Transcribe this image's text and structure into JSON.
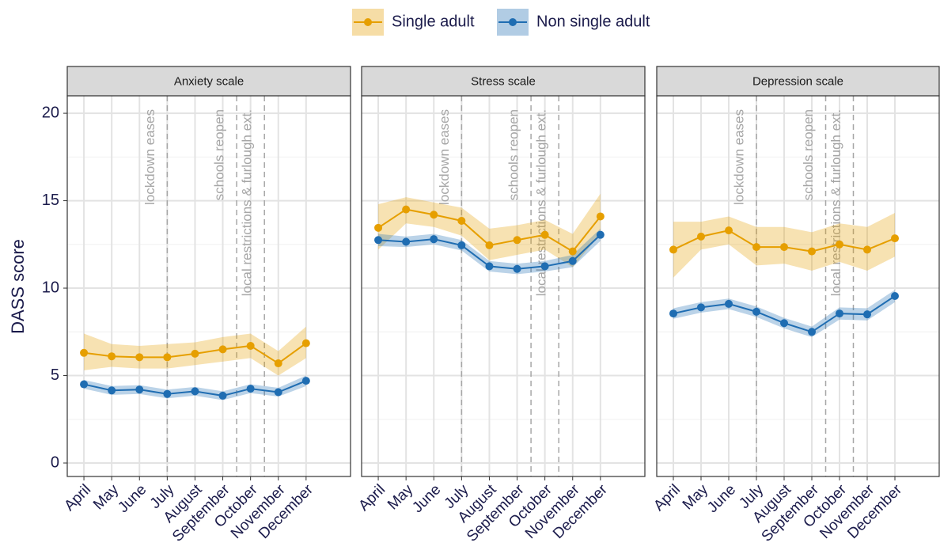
{
  "chart_data": [
    {
      "type": "line",
      "title": "Anxiety scale",
      "ylabel": "DASS score",
      "categories": [
        "April",
        "May",
        "June",
        "July",
        "August",
        "September",
        "October",
        "November",
        "December"
      ],
      "series": [
        {
          "name": "Single adult",
          "color": "#E69F00",
          "values": [
            6.3,
            6.1,
            6.05,
            6.05,
            6.25,
            6.5,
            6.7,
            5.7,
            6.85
          ],
          "lower": [
            5.3,
            5.5,
            5.4,
            5.4,
            5.6,
            5.8,
            6.0,
            5.0,
            6.0
          ],
          "upper": [
            7.4,
            6.8,
            6.7,
            6.8,
            6.9,
            7.2,
            7.4,
            6.4,
            7.8
          ]
        },
        {
          "name": "Non single adult",
          "color": "#1F6DB2",
          "values": [
            4.5,
            4.15,
            4.2,
            3.95,
            4.1,
            3.85,
            4.25,
            4.05,
            4.7
          ],
          "lower": [
            4.25,
            3.9,
            3.95,
            3.7,
            3.85,
            3.6,
            4.0,
            3.8,
            4.4
          ],
          "upper": [
            4.75,
            4.4,
            4.45,
            4.2,
            4.35,
            4.1,
            4.5,
            4.3,
            5.0
          ]
        }
      ],
      "events": [
        {
          "label": "lockdown eases",
          "x": 3
        },
        {
          "label": "schools reopen",
          "x": 5.5
        },
        {
          "label": "local restrictions & furlough ext.",
          "x": 6.5
        }
      ],
      "ylim": [
        -0.77,
        21.0
      ],
      "yticks": [
        0,
        5,
        10,
        15,
        20
      ],
      "grid": true
    },
    {
      "type": "line",
      "title": "Stress scale",
      "categories": [
        "April",
        "May",
        "June",
        "July",
        "August",
        "September",
        "October",
        "November",
        "December"
      ],
      "series": [
        {
          "name": "Single adult",
          "color": "#E69F00",
          "values": [
            13.45,
            14.5,
            14.2,
            13.85,
            12.45,
            12.75,
            13.05,
            12.1,
            14.1
          ],
          "lower": [
            12.2,
            13.7,
            13.5,
            13.0,
            11.6,
            11.9,
            12.2,
            11.2,
            13.1
          ],
          "upper": [
            14.8,
            15.2,
            14.9,
            14.6,
            13.4,
            13.6,
            13.9,
            13.1,
            15.4
          ]
        },
        {
          "name": "Non single adult",
          "color": "#1F6DB2",
          "values": [
            12.75,
            12.65,
            12.8,
            12.45,
            11.25,
            11.1,
            11.25,
            11.55,
            13.05
          ],
          "lower": [
            12.4,
            12.35,
            12.5,
            12.15,
            10.95,
            10.8,
            10.95,
            11.2,
            12.7
          ],
          "upper": [
            13.1,
            12.95,
            13.1,
            12.75,
            11.55,
            11.4,
            11.55,
            11.9,
            13.4
          ]
        }
      ],
      "events": [
        {
          "label": "lockdown eases",
          "x": 3
        },
        {
          "label": "schools reopen",
          "x": 5.5
        },
        {
          "label": "local restrictions & furlough ext.",
          "x": 6.5
        }
      ],
      "ylim": [
        -0.77,
        21.0
      ],
      "yticks": [
        0,
        5,
        10,
        15,
        20
      ],
      "grid": true
    },
    {
      "type": "line",
      "title": "Depression scale",
      "categories": [
        "April",
        "May",
        "June",
        "July",
        "August",
        "September",
        "October",
        "November",
        "December"
      ],
      "series": [
        {
          "name": "Single adult",
          "color": "#E69F00",
          "values": [
            12.2,
            12.95,
            13.3,
            12.35,
            12.35,
            12.1,
            12.5,
            12.2,
            12.85
          ],
          "lower": [
            10.6,
            12.2,
            12.5,
            11.3,
            11.4,
            11.0,
            11.5,
            11.0,
            11.8
          ],
          "upper": [
            13.8,
            13.8,
            14.1,
            13.5,
            13.5,
            13.2,
            13.7,
            13.5,
            14.3
          ]
        },
        {
          "name": "Non single adult",
          "color": "#1F6DB2",
          "values": [
            8.55,
            8.9,
            9.1,
            8.65,
            8.0,
            7.5,
            8.55,
            8.5,
            9.55
          ],
          "lower": [
            8.25,
            8.6,
            8.8,
            8.35,
            7.7,
            7.2,
            8.2,
            8.15,
            9.2
          ],
          "upper": [
            8.85,
            9.2,
            9.4,
            8.95,
            8.3,
            7.8,
            8.9,
            8.85,
            9.9
          ]
        }
      ],
      "events": [
        {
          "label": "lockdown eases",
          "x": 3
        },
        {
          "label": "schools reopen",
          "x": 5.5
        },
        {
          "label": "local restrictions & furlough ext.",
          "x": 6.5
        }
      ],
      "ylim": [
        -0.77,
        21.0
      ],
      "yticks": [
        0,
        5,
        10,
        15,
        20
      ],
      "grid": true
    }
  ]
}
